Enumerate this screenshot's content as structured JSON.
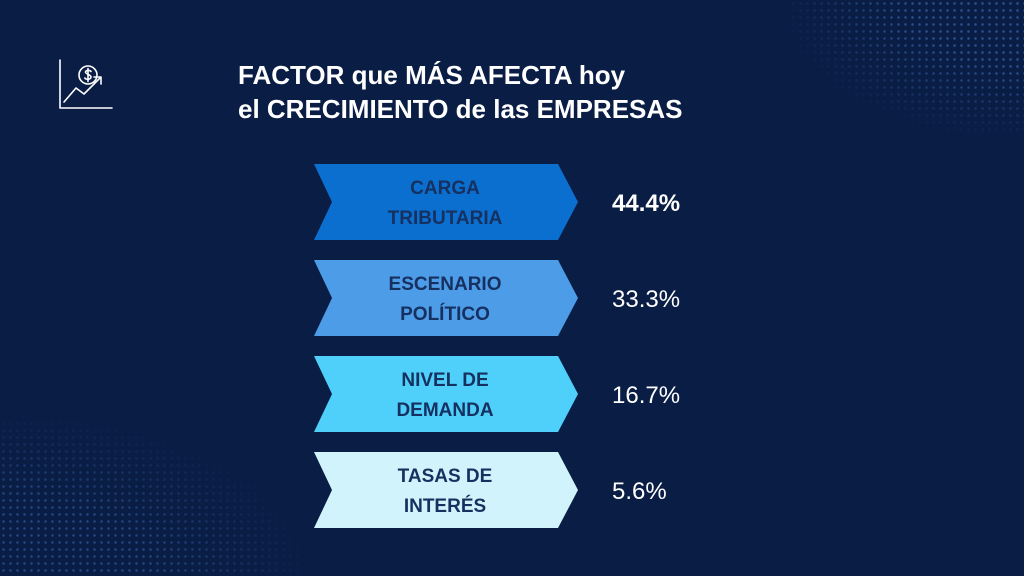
{
  "title": {
    "line1": "FACTOR que MÁS AFECTA hoy",
    "line2": "el CRECIMIENTO de las EMPRESAS"
  },
  "icon": "chart-dollar-icon",
  "colors": {
    "background": "#0a1d45",
    "bars": [
      "#0b6fcf",
      "#4d9ce8",
      "#4fd0fb",
      "#d1f3fc"
    ],
    "label_text": "#16305f",
    "value_text": "#ffffff"
  },
  "chart_data": {
    "type": "bar",
    "orientation": "horizontal",
    "categories": [
      [
        "CARGA",
        "TRIBUTARIA"
      ],
      [
        "ESCENARIO",
        "POLÍTICO"
      ],
      [
        "NIVEL DE",
        "DEMANDA"
      ],
      [
        "TASAS DE",
        "INTERÉS"
      ]
    ],
    "values": [
      44.4,
      33.3,
      16.7,
      5.6
    ],
    "value_labels": [
      "44.4%",
      "33.3%",
      "16.7%",
      "5.6%"
    ],
    "unit": "%"
  }
}
